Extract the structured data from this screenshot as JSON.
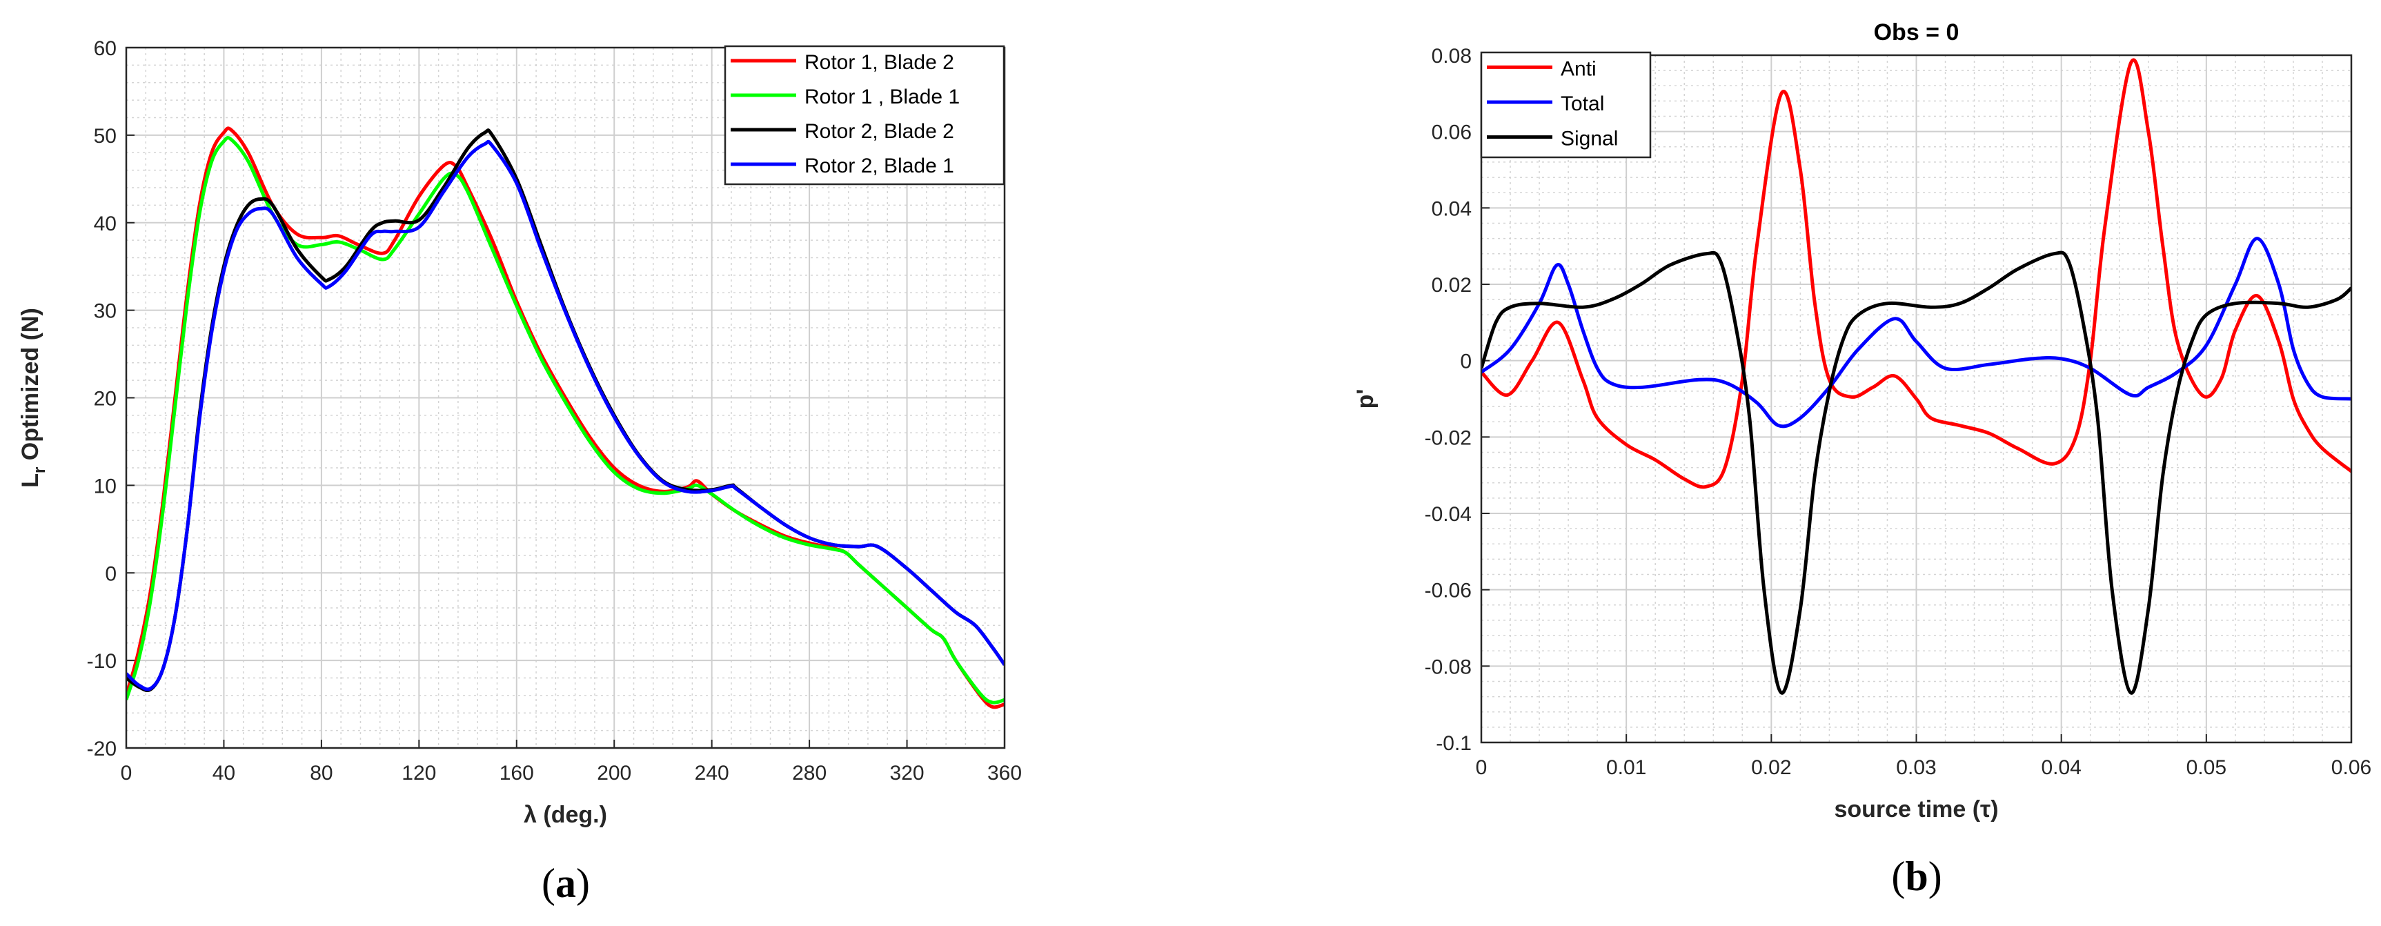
{
  "chart_data": [
    {
      "type": "line",
      "caption_letter": "a",
      "title": "",
      "xlabel": "λ (deg.)",
      "ylabel_main": "L",
      "ylabel_sub": "r",
      "ylabel_rest": " Optimized (N)",
      "xlim": [
        0,
        360
      ],
      "ylim": [
        -20,
        60
      ],
      "xticks": [
        0,
        40,
        80,
        120,
        160,
        200,
        240,
        280,
        320,
        360
      ],
      "yticks": [
        -20,
        -10,
        0,
        10,
        20,
        30,
        40,
        50,
        60
      ],
      "xtick_labels": [
        "0",
        "40",
        "80",
        "120",
        "160",
        "200",
        "240",
        "280",
        "320",
        "360"
      ],
      "ytick_labels": [
        "-20",
        "-10",
        "0",
        "10",
        "20",
        "30",
        "40",
        "50",
        "60"
      ],
      "grid": true,
      "minor_grid": true,
      "legend_position": "top-right",
      "series": [
        {
          "name": "Rotor 1, Blade 2",
          "color": "#ff0000",
          "x": [
            0,
            5,
            10,
            15,
            20,
            25,
            30,
            35,
            40,
            43,
            50,
            60,
            70,
            80,
            87,
            95,
            105,
            110,
            120,
            130,
            135,
            140,
            150,
            160,
            170,
            180,
            190,
            200,
            210,
            220,
            230,
            234,
            240,
            250,
            260,
            270,
            280,
            290,
            295,
            300,
            310,
            320,
            330,
            335,
            340,
            350,
            355,
            360
          ],
          "y": [
            -14,
            -9,
            -2,
            8,
            20,
            32,
            42,
            48,
            50.3,
            50.6,
            48,
            42,
            38.7,
            38.3,
            38.5,
            37.5,
            36.5,
            38,
            43,
            46.5,
            46.5,
            44,
            38,
            31,
            25,
            20,
            15.5,
            12,
            10,
            9.3,
            9.8,
            10.5,
            9,
            7,
            5.5,
            4.2,
            3.4,
            2.8,
            2.3,
            1,
            -1.5,
            -4,
            -6.5,
            -7.5,
            -10,
            -14,
            -15.3,
            -15
          ]
        },
        {
          "name": "Rotor 1 , Blade 1",
          "color": "#00ff00",
          "x": [
            0,
            5,
            10,
            15,
            20,
            25,
            30,
            35,
            40,
            43,
            50,
            60,
            70,
            80,
            87,
            95,
            105,
            110,
            120,
            130,
            135,
            140,
            150,
            160,
            170,
            180,
            190,
            200,
            210,
            220,
            230,
            234,
            240,
            250,
            260,
            270,
            280,
            290,
            295,
            300,
            310,
            320,
            330,
            335,
            340,
            350,
            355,
            360
          ],
          "y": [
            -14.5,
            -10,
            -3,
            7,
            19,
            31,
            41,
            47,
            49.3,
            49.5,
            47,
            41,
            37.5,
            37.5,
            37.8,
            37,
            35.8,
            37,
            41,
            45,
            45.5,
            43.5,
            37,
            30.5,
            24.5,
            19.5,
            15,
            11.5,
            9.6,
            9.1,
            9.6,
            10,
            9,
            7,
            5.3,
            4,
            3.2,
            2.7,
            2.3,
            1,
            -1.5,
            -4,
            -6.5,
            -7.5,
            -10,
            -13.8,
            -14.8,
            -14.5
          ]
        },
        {
          "name": "Rotor 2, Blade 2",
          "color": "#000000",
          "x": [
            0,
            5,
            10,
            15,
            20,
            25,
            30,
            35,
            40,
            45,
            50,
            55,
            60,
            70,
            80,
            83,
            90,
            100,
            105,
            110,
            120,
            130,
            140,
            147,
            150,
            160,
            170,
            180,
            190,
            200,
            210,
            220,
            230,
            240,
            248,
            250,
            260,
            270,
            280,
            290,
            300,
            308,
            320,
            330,
            340,
            348,
            355,
            360
          ],
          "y": [
            -12,
            -13,
            -13.3,
            -11,
            -5,
            5,
            18,
            28,
            35,
            39.5,
            42,
            42.7,
            42,
            37,
            33.8,
            33.5,
            35,
            39,
            40,
            40.2,
            40.3,
            44,
            48.5,
            50.3,
            50,
            45,
            37.5,
            30,
            23.5,
            18,
            13.5,
            10.5,
            9.5,
            9.5,
            10,
            9.7,
            7.5,
            5.5,
            4,
            3.2,
            3,
            3,
            0.5,
            -2,
            -4.5,
            -6,
            -8.5,
            -10.5
          ]
        },
        {
          "name": "Rotor 2, Blade 1",
          "color": "#0000ff",
          "x": [
            0,
            5,
            10,
            15,
            20,
            25,
            30,
            35,
            40,
            45,
            50,
            55,
            60,
            70,
            80,
            83,
            90,
            100,
            105,
            110,
            120,
            130,
            140,
            147,
            150,
            160,
            170,
            180,
            190,
            200,
            210,
            220,
            230,
            240,
            248,
            250,
            260,
            270,
            280,
            290,
            300,
            308,
            320,
            330,
            340,
            348,
            355,
            360
          ],
          "y": [
            -11.5,
            -12.8,
            -13.2,
            -11,
            -5,
            5,
            17.5,
            27.5,
            34.5,
            39,
            41,
            41.6,
            41,
            36,
            33,
            32.7,
            34.5,
            38.5,
            39,
            39,
            39.5,
            43.5,
            47.5,
            49,
            48.8,
            44.5,
            37,
            29.8,
            23.3,
            17.8,
            13.4,
            10.4,
            9.3,
            9.4,
            9.9,
            9.6,
            7.5,
            5.5,
            4,
            3.2,
            3,
            3,
            0.5,
            -2,
            -4.5,
            -6,
            -8.5,
            -10.5
          ]
        }
      ]
    },
    {
      "type": "line",
      "caption_letter": "b",
      "title": "Obs = 0",
      "xlabel": "source time (τ)",
      "ylabel": "p'",
      "xlim": [
        0,
        0.06
      ],
      "ylim": [
        -0.1,
        0.08
      ],
      "xticks": [
        0,
        0.01,
        0.02,
        0.03,
        0.04,
        0.05,
        0.06
      ],
      "yticks": [
        -0.1,
        -0.08,
        -0.06,
        -0.04,
        -0.02,
        0,
        0.02,
        0.04,
        0.06,
        0.08
      ],
      "xtick_labels": [
        "0",
        "0.01",
        "0.02",
        "0.03",
        "0.04",
        "0.05",
        "0.06"
      ],
      "ytick_labels": [
        "-0.1",
        "-0.08",
        "-0.06",
        "-0.04",
        "-0.02",
        "0",
        "0.02",
        "0.04",
        "0.06",
        "0.08"
      ],
      "grid": true,
      "minor_grid": true,
      "legend_position": "top-left",
      "series": [
        {
          "name": "Anti",
          "color": "#ff0000",
          "x": [
            0,
            0.0018,
            0.0035,
            0.0053,
            0.007,
            0.008,
            0.01,
            0.012,
            0.014,
            0.0155,
            0.0168,
            0.018,
            0.019,
            0.0207,
            0.022,
            0.023,
            0.024,
            0.0255,
            0.027,
            0.0285,
            0.03,
            0.031,
            0.033,
            0.035,
            0.037,
            0.0395,
            0.041,
            0.042,
            0.043,
            0.0448,
            0.046,
            0.047,
            0.048,
            0.0497,
            0.051,
            0.052,
            0.0535,
            0.055,
            0.056,
            0.057,
            0.058,
            0.06
          ],
          "y": [
            -0.003,
            -0.009,
            0,
            0.01,
            -0.005,
            -0.015,
            -0.022,
            -0.026,
            -0.031,
            -0.033,
            -0.028,
            -0.005,
            0.03,
            0.07,
            0.05,
            0.015,
            -0.005,
            -0.0095,
            -0.007,
            -0.004,
            -0.01,
            -0.015,
            -0.017,
            -0.019,
            -0.023,
            -0.027,
            -0.02,
            0,
            0.035,
            0.078,
            0.06,
            0.03,
            0.005,
            -0.009,
            -0.005,
            0.008,
            0.017,
            0.005,
            -0.01,
            -0.018,
            -0.023,
            -0.029
          ]
        },
        {
          "name": "Total",
          "color": "#0000ff",
          "x": [
            0,
            0.002,
            0.004,
            0.0052,
            0.006,
            0.007,
            0.008,
            0.009,
            0.011,
            0.015,
            0.017,
            0.019,
            0.0205,
            0.022,
            0.024,
            0.026,
            0.0285,
            0.03,
            0.032,
            0.035,
            0.038,
            0.04,
            0.042,
            0.0448,
            0.046,
            0.048,
            0.05,
            0.052,
            0.0535,
            0.055,
            0.056,
            0.057,
            0.058,
            0.06
          ],
          "y": [
            -0.003,
            0.003,
            0.015,
            0.025,
            0.02,
            0.008,
            -0.002,
            -0.006,
            -0.007,
            -0.005,
            -0.006,
            -0.011,
            -0.017,
            -0.015,
            -0.007,
            0.003,
            0.011,
            0.005,
            -0.002,
            -0.001,
            0.0005,
            0.0005,
            -0.002,
            -0.009,
            -0.007,
            -0.003,
            0.004,
            0.02,
            0.032,
            0.02,
            0.003,
            -0.006,
            -0.0095,
            -0.01
          ]
        },
        {
          "name": "Signal",
          "color": "#000000",
          "x": [
            0,
            0.001,
            0.002,
            0.004,
            0.007,
            0.009,
            0.011,
            0.013,
            0.0155,
            0.0165,
            0.0175,
            0.0185,
            0.0195,
            0.0207,
            0.022,
            0.023,
            0.024,
            0.025,
            0.026,
            0.028,
            0.031,
            0.033,
            0.035,
            0.037,
            0.0395,
            0.0405,
            0.0415,
            0.0425,
            0.0435,
            0.0448,
            0.046,
            0.047,
            0.048,
            0.049,
            0.05,
            0.052,
            0.055,
            0.057,
            0.059,
            0.06
          ],
          "y": [
            -0.002,
            0.01,
            0.014,
            0.015,
            0.014,
            0.016,
            0.02,
            0.025,
            0.028,
            0.026,
            0.01,
            -0.015,
            -0.06,
            -0.087,
            -0.065,
            -0.03,
            -0.008,
            0.006,
            0.012,
            0.015,
            0.014,
            0.015,
            0.019,
            0.024,
            0.028,
            0.026,
            0.01,
            -0.015,
            -0.06,
            -0.087,
            -0.065,
            -0.03,
            -0.008,
            0.005,
            0.012,
            0.015,
            0.015,
            0.014,
            0.016,
            0.019
          ]
        }
      ]
    }
  ]
}
